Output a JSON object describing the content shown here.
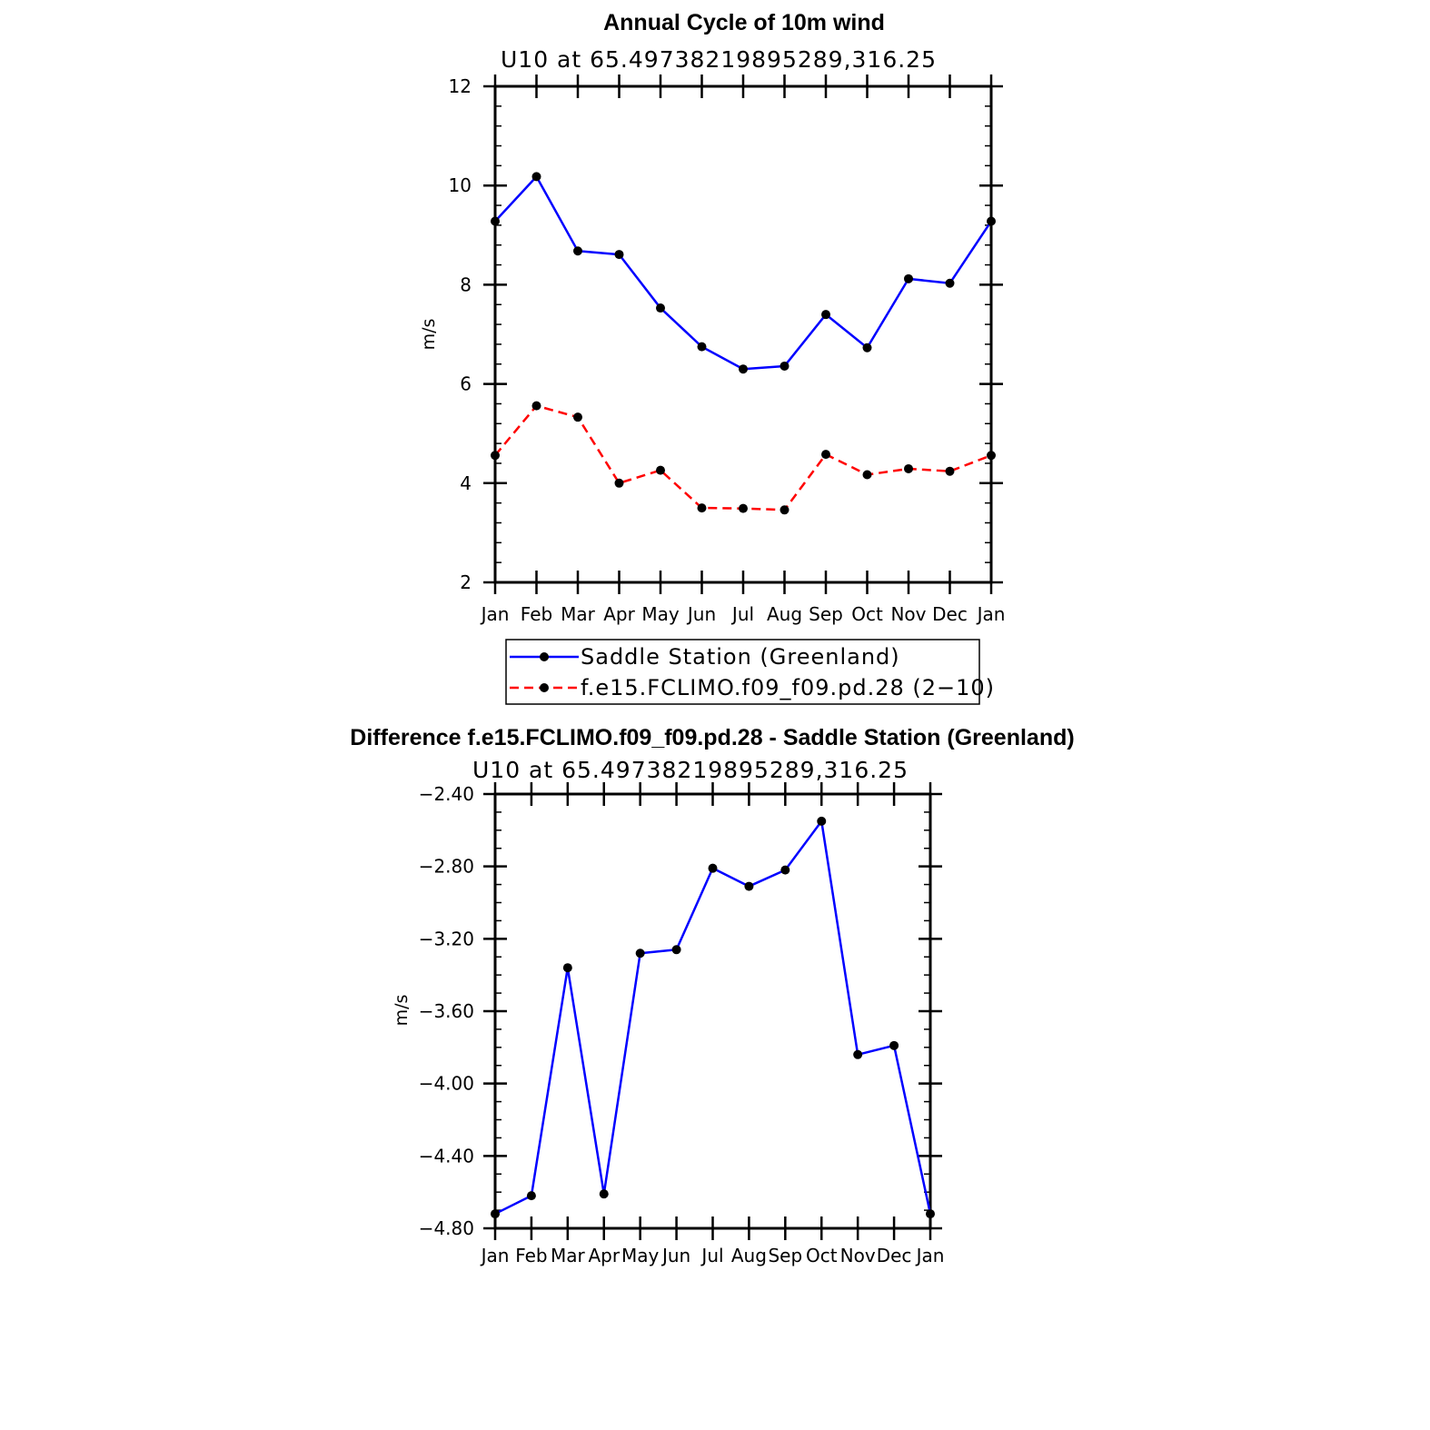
{
  "chart_data": [
    {
      "type": "line",
      "title": "Annual Cycle of 10m wind",
      "subtitle": "U10 at 65.49738219895289,316.25",
      "xlabel": "",
      "ylabel": "m/s",
      "categories": [
        "Jan",
        "Feb",
        "Mar",
        "Apr",
        "May",
        "Jun",
        "Jul",
        "Aug",
        "Sep",
        "Oct",
        "Nov",
        "Dec",
        "Jan"
      ],
      "ylim": [
        2,
        12
      ],
      "yticks": [
        2,
        4,
        6,
        8,
        10,
        12
      ],
      "ytick_labels": [
        "2",
        "4",
        "6",
        "8",
        "10",
        "12"
      ],
      "grid": false,
      "legend_position": "bottom",
      "series": [
        {
          "name": "Saddle Station (Greenland)",
          "color": "#0000ff",
          "dash": "solid",
          "values": [
            9.28,
            10.18,
            8.68,
            8.61,
            7.53,
            6.75,
            6.3,
            6.36,
            7.4,
            6.73,
            8.12,
            8.03,
            9.28
          ]
        },
        {
          "name": "f.e15.FCLIMO.f09_f09.pd.28 (2−10)",
          "color": "#ff0000",
          "dash": "dashed",
          "values": [
            4.56,
            5.56,
            5.33,
            4.0,
            4.26,
            3.5,
            3.49,
            3.46,
            4.58,
            4.17,
            4.29,
            4.24,
            4.56
          ]
        }
      ]
    },
    {
      "type": "line",
      "title": "Difference f.e15.FCLIMO.f09_f09.pd.28 - Saddle Station (Greenland)",
      "subtitle": "U10 at 65.49738219895289,316.25",
      "xlabel": "",
      "ylabel": "m/s",
      "categories": [
        "Jan",
        "Feb",
        "Mar",
        "Apr",
        "May",
        "Jun",
        "Jul",
        "Aug",
        "Sep",
        "Oct",
        "Nov",
        "Dec",
        "Jan"
      ],
      "ylim": [
        -4.8,
        -2.4
      ],
      "yticks": [
        -4.8,
        -4.4,
        -4.0,
        -3.6,
        -3.2,
        -2.8,
        -2.4
      ],
      "ytick_labels": [
        "−4.80",
        "−4.40",
        "−4.00",
        "−3.60",
        "−3.20",
        "−2.80",
        "−2.40"
      ],
      "grid": false,
      "series": [
        {
          "color": "#0000ff",
          "dash": "solid",
          "values": [
            -4.72,
            -4.62,
            -3.36,
            -4.61,
            -3.28,
            -3.26,
            -2.81,
            -2.91,
            -2.82,
            -2.55,
            -3.84,
            -3.79,
            -4.72
          ]
        }
      ]
    }
  ]
}
